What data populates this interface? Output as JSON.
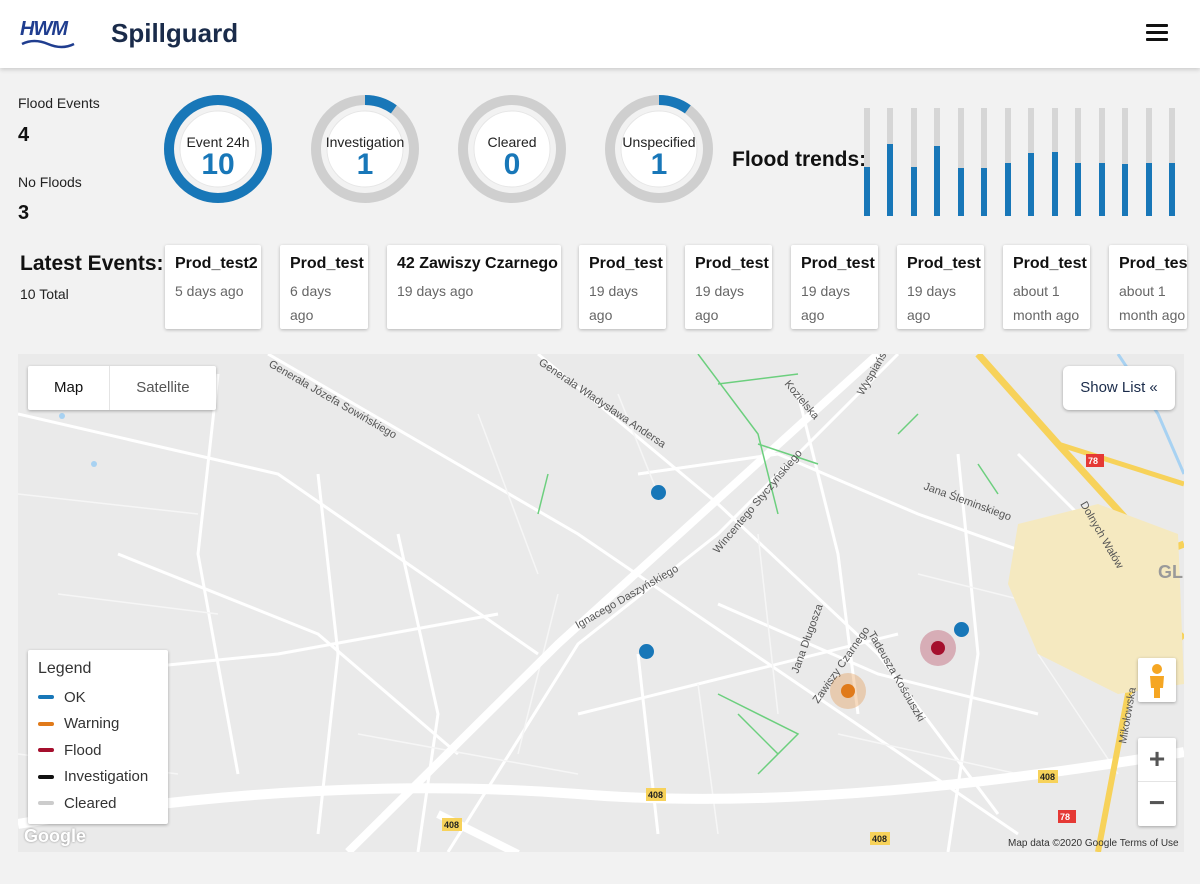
{
  "header": {
    "logo_text": "HWM",
    "title": "Spillguard",
    "menu_icon": "hamburger-menu-icon"
  },
  "stats": {
    "flood_events_label": "Flood Events",
    "flood_events_value": "4",
    "no_floods_label": "No Floods",
    "no_floods_value": "3"
  },
  "gauges": [
    {
      "label": "Event 24h",
      "value": "10",
      "fill": 1.0
    },
    {
      "label": "Investigation",
      "value": "1",
      "fill": 0.1
    },
    {
      "label": "Cleared",
      "value": "0",
      "fill": 0.0
    },
    {
      "label": "Unspecified",
      "value": "1",
      "fill": 0.1
    }
  ],
  "colors": {
    "accent": "#1877b8",
    "track": "#cfcfcf",
    "ok": "#1877b8",
    "warning": "#e07a1a",
    "flood": "#a50f2d",
    "investigation": "#111111",
    "cleared": "#cccccc"
  },
  "trends": {
    "label": "Flood trends:",
    "levels": [
      0.45,
      0.67,
      0.45,
      0.65,
      0.44,
      0.44,
      0.49,
      0.58,
      0.59,
      0.49,
      0.49,
      0.48,
      0.49,
      0.49
    ]
  },
  "latest": {
    "title": "Latest Events:",
    "total": "10 Total",
    "events": [
      {
        "name": "Prod_test2",
        "time": "5 days ago"
      },
      {
        "name": "Prod_test",
        "time": "6 days ago"
      },
      {
        "name": "42 Zawiszy Czarnego",
        "time": "19 days ago"
      },
      {
        "name": "Prod_test",
        "time": "19 days ago"
      },
      {
        "name": "Prod_test",
        "time": "19 days ago"
      },
      {
        "name": "Prod_test",
        "time": "19 days ago"
      },
      {
        "name": "Prod_test",
        "time": "19 days ago"
      },
      {
        "name": "Prod_test",
        "time": "about 1 month ago"
      },
      {
        "name": "Prod_test",
        "time": "about 1 month ago"
      }
    ]
  },
  "map": {
    "toggle": {
      "map": "Map",
      "satellite": "Satellite"
    },
    "show_list": "Show List «",
    "legend": {
      "title": "Legend",
      "items": [
        {
          "label": "OK",
          "color": "#1877b8"
        },
        {
          "label": "Warning",
          "color": "#e07a1a"
        },
        {
          "label": "Flood",
          "color": "#a50f2d"
        },
        {
          "label": "Investigation",
          "color": "#111111"
        },
        {
          "label": "Cleared",
          "color": "#cccccc"
        }
      ]
    },
    "zoom_in": "+",
    "zoom_out": "−",
    "google": "Google",
    "attribution": "Map data ©2020 Google   Terms of Use",
    "street_labels": [
      "Generała Józefa Sowińskiego",
      "Generała Władysława Andersa",
      "Wincentego Styczyńskiego",
      "Ignacego Daszyńskiego",
      "Tadeusza Kościuszki",
      "Jana Długosza",
      "Zawiszy Czarnego",
      "Jana Śleminskiego",
      "Kozielska",
      "Wyspiańskiego",
      "Mikołowska",
      "Dolnych Wałów"
    ],
    "road_badges": [
      "78",
      "408",
      "408",
      "408",
      "408",
      "78"
    ],
    "city_label": "GL"
  }
}
